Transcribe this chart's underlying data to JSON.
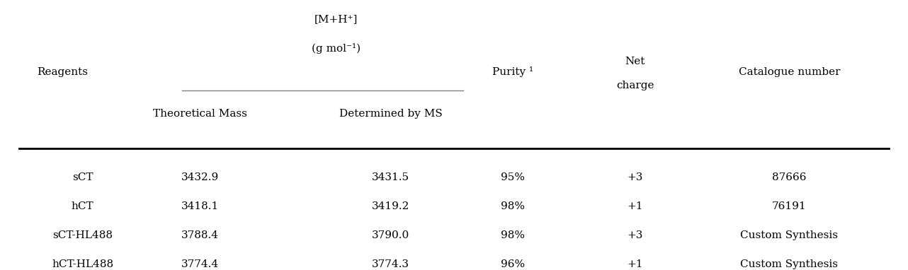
{
  "col_headers": {
    "reagents": "Reagents",
    "mh_line1": "[M+H⁺]",
    "mh_line2": "(g mol⁻¹)",
    "theoretical": "Theoretical Mass",
    "determined": "Determined by MS",
    "purity": "Purity ¹",
    "net_charge_line1": "Net",
    "net_charge_line2": "charge",
    "catalogue": "Catalogue number"
  },
  "rows": [
    {
      "reagent": "sCT",
      "theoretical": "3432.9",
      "determined": "3431.5",
      "purity": "95%",
      "net_charge": "+3",
      "catalogue": "87666"
    },
    {
      "reagent": "hCT",
      "theoretical": "3418.1",
      "determined": "3419.2",
      "purity": "98%",
      "net_charge": "+1",
      "catalogue": "76191"
    },
    {
      "reagent": "sCT-HL488",
      "theoretical": "3788.4",
      "determined": "3790.0",
      "purity": "98%",
      "net_charge": "+3",
      "catalogue": "Custom Synthesis"
    },
    {
      "reagent": "hCT-HL488",
      "theoretical": "3774.4",
      "determined": "3774.3",
      "purity": "96%",
      "net_charge": "+1",
      "catalogue": "Custom Synthesis"
    }
  ],
  "col_x": {
    "reagents": 0.04,
    "theoretical": 0.22,
    "determined": 0.38,
    "purity": 0.565,
    "net_charge": 0.7,
    "catalogue": 0.87
  },
  "background_color": "#ffffff",
  "text_color": "#000000",
  "font_size": 11,
  "header_font_size": 11
}
